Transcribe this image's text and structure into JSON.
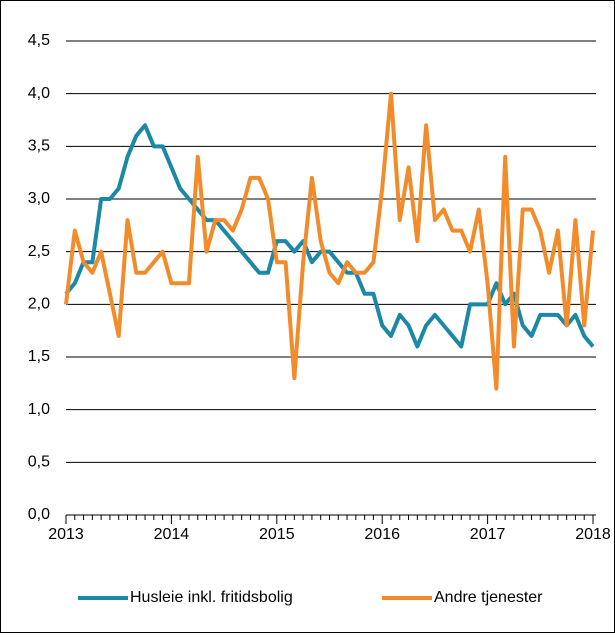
{
  "chart_data": {
    "type": "line",
    "categories": [
      "2013",
      null,
      null,
      null,
      null,
      null,
      null,
      null,
      null,
      null,
      null,
      null,
      "2014",
      null,
      null,
      null,
      null,
      null,
      null,
      null,
      null,
      null,
      null,
      null,
      "2015",
      null,
      null,
      null,
      null,
      null,
      null,
      null,
      null,
      null,
      null,
      null,
      "2016",
      null,
      null,
      null,
      null,
      null,
      null,
      null,
      null,
      null,
      null,
      null,
      "2017",
      null,
      null,
      null,
      null,
      null,
      null,
      null,
      null,
      null,
      null,
      null,
      "2018"
    ],
    "series": [
      {
        "name": "Husleie inkl. fritidsbolig",
        "color": "#1b88a6",
        "values": [
          2.1,
          2.2,
          2.4,
          2.4,
          3.0,
          3.0,
          3.1,
          3.4,
          3.6,
          3.7,
          3.5,
          3.5,
          3.3,
          3.1,
          3.0,
          2.9,
          2.8,
          2.8,
          2.7,
          2.6,
          2.5,
          2.4,
          2.3,
          2.3,
          2.6,
          2.6,
          2.5,
          2.6,
          2.4,
          2.5,
          2.5,
          2.4,
          2.3,
          2.3,
          2.1,
          2.1,
          1.8,
          1.7,
          1.9,
          1.8,
          1.6,
          1.8,
          1.9,
          1.8,
          1.7,
          1.6,
          2.0,
          2.0,
          2.0,
          2.2,
          2.0,
          2.1,
          1.8,
          1.7,
          1.9,
          1.9,
          1.9,
          1.8,
          1.9,
          1.7,
          1.6
        ]
      },
      {
        "name": "Andre tjenester",
        "color": "#f28c2b",
        "values": [
          2.0,
          2.7,
          2.4,
          2.3,
          2.5,
          2.1,
          1.7,
          2.8,
          2.3,
          2.3,
          2.4,
          2.5,
          2.2,
          2.2,
          2.2,
          3.4,
          2.5,
          2.8,
          2.8,
          2.7,
          2.9,
          3.2,
          3.2,
          3.0,
          2.4,
          2.4,
          1.3,
          2.4,
          3.2,
          2.6,
          2.3,
          2.2,
          2.4,
          2.3,
          2.3,
          2.4,
          3.1,
          4.0,
          2.8,
          3.3,
          2.6,
          3.7,
          2.8,
          2.9,
          2.7,
          2.7,
          2.5,
          2.9,
          2.2,
          1.2,
          3.4,
          1.6,
          2.9,
          2.9,
          2.7,
          2.3,
          2.7,
          1.8,
          2.8,
          1.8,
          2.7
        ]
      }
    ],
    "ylim": [
      0,
      4.5
    ],
    "yticks": [
      {
        "value": 0,
        "label": "0,0"
      },
      {
        "value": 0.5,
        "label": "0,5"
      },
      {
        "value": 1,
        "label": "1,0"
      },
      {
        "value": 1.5,
        "label": "1,5"
      },
      {
        "value": 2,
        "label": "2,0"
      },
      {
        "value": 2.5,
        "label": "2,5"
      },
      {
        "value": 3,
        "label": "3,0"
      },
      {
        "value": 3.5,
        "label": "3,5"
      },
      {
        "value": 4,
        "label": "4,0"
      },
      {
        "value": 4.5,
        "label": "4,5"
      }
    ],
    "grid": true,
    "legend": "bottom"
  }
}
